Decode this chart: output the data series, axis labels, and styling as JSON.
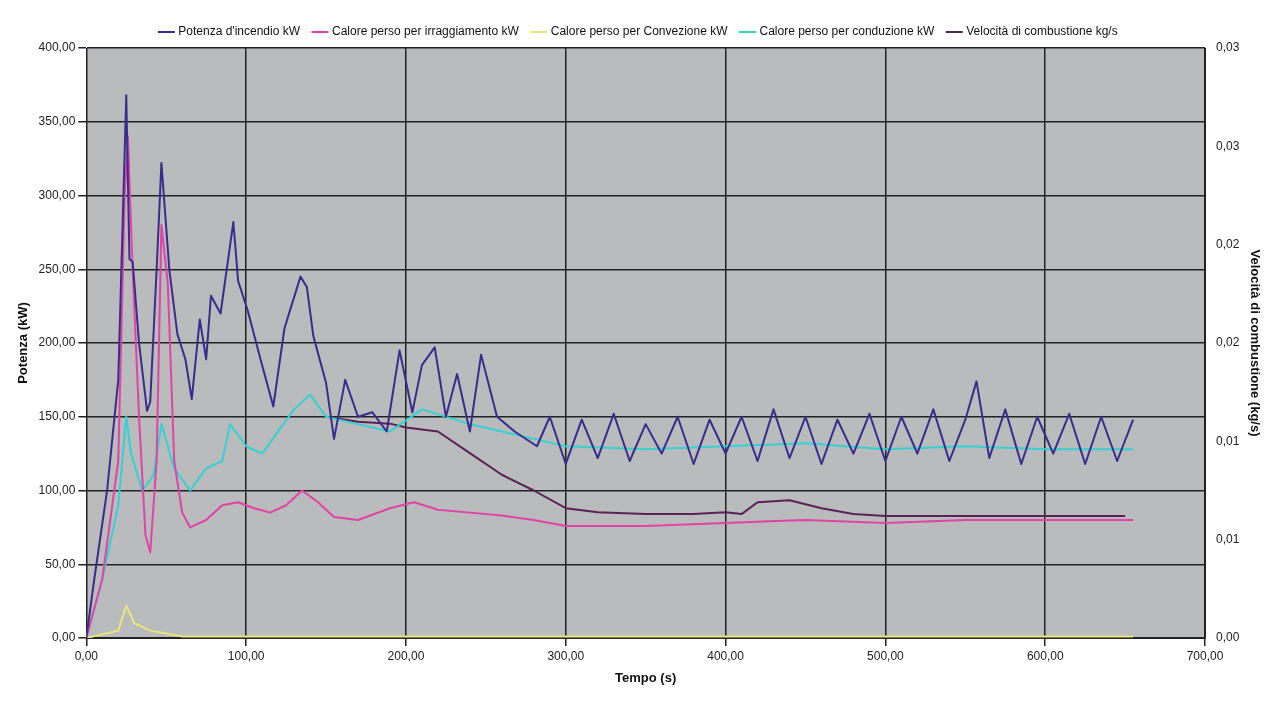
{
  "chart_data": {
    "type": "line",
    "xlabel": "Tempo (s)",
    "ylabel": "Potenza (kW)",
    "y2label": "Velocità di combustione (kg/s)",
    "xlim": [
      0,
      700
    ],
    "xticks": [
      {
        "value": 0,
        "label": "0,00"
      },
      {
        "value": 100,
        "label": "100,00"
      },
      {
        "value": 200,
        "label": "200,00"
      },
      {
        "value": 300,
        "label": "300,00"
      },
      {
        "value": 400,
        "label": "400,00"
      },
      {
        "value": 500,
        "label": "500,00"
      },
      {
        "value": 600,
        "label": "600,00"
      },
      {
        "value": 700,
        "label": "700,00"
      }
    ],
    "ylim": [
      0,
      400
    ],
    "yticks": [
      {
        "value": 0,
        "label": "0,00"
      },
      {
        "value": 50,
        "label": "50,00"
      },
      {
        "value": 100,
        "label": "100,00"
      },
      {
        "value": 150,
        "label": "150,00"
      },
      {
        "value": 200,
        "label": "200,00"
      },
      {
        "value": 250,
        "label": "250,00"
      },
      {
        "value": 300,
        "label": "300,00"
      },
      {
        "value": 350,
        "label": "350,00"
      },
      {
        "value": 400,
        "label": "400,00"
      }
    ],
    "y2lim": [
      0,
      0.03
    ],
    "y2ticks": [
      {
        "value": 0,
        "label": "0,00"
      },
      {
        "value": 0.005,
        "label": "0,01"
      },
      {
        "value": 0.01,
        "label": "0,01"
      },
      {
        "value": 0.015,
        "label": "0,02"
      },
      {
        "value": 0.02,
        "label": "0,02"
      },
      {
        "value": 0.025,
        "label": "0,03"
      },
      {
        "value": 0.03,
        "label": "0,03"
      }
    ],
    "grid": true,
    "legend": "top",
    "marker": "none",
    "line_style": "solid",
    "series": [
      {
        "name": "Potenza d'incendio kW",
        "color": "#3b2c8c",
        "x": [
          0,
          5,
          13,
          20,
          25,
          27,
          29,
          33,
          38,
          40,
          44,
          47,
          52,
          57,
          62,
          66,
          71,
          75,
          78,
          84,
          92,
          95,
          101,
          109,
          117,
          124,
          134,
          138,
          142,
          150,
          155,
          162,
          170,
          179,
          188,
          196,
          204,
          210,
          218,
          225,
          232,
          240,
          247,
          257,
          268,
          282,
          290,
          300,
          310,
          320,
          330,
          340,
          350,
          360,
          370,
          380,
          390,
          400,
          410,
          420,
          430,
          440,
          450,
          460,
          470,
          480,
          490,
          500,
          510,
          520,
          530,
          540,
          550,
          557,
          565,
          575,
          585,
          595,
          605,
          615,
          625,
          635,
          645,
          655
        ],
        "values": [
          0,
          40,
          100,
          175,
          368,
          257,
          255,
          200,
          154,
          160,
          250,
          322,
          249,
          206,
          189,
          162,
          216,
          189,
          232,
          220,
          282,
          242,
          222,
          189,
          157,
          210,
          245,
          238,
          205,
          173,
          135,
          175,
          150,
          153,
          140,
          195,
          153,
          185,
          197,
          150,
          179,
          140,
          192,
          150,
          140,
          130,
          150,
          118,
          148,
          122,
          152,
          120,
          145,
          125,
          150,
          118,
          148,
          125,
          150,
          120,
          155,
          122,
          150,
          118,
          148,
          125,
          152,
          120,
          150,
          125,
          155,
          120,
          148,
          174,
          122,
          155,
          118,
          150,
          125,
          152,
          118,
          150,
          120,
          148
        ]
      },
      {
        "name": "Calore perso per irraggiamento kW",
        "color": "#e044a4",
        "x": [
          0,
          10,
          20,
          24,
          26,
          29,
          33,
          37,
          40,
          44,
          47,
          51,
          55,
          60,
          65,
          75,
          85,
          95,
          105,
          115,
          125,
          135,
          145,
          155,
          170,
          190,
          205,
          220,
          240,
          260,
          280,
          300,
          350,
          400,
          450,
          500,
          550,
          600,
          655
        ],
        "values": [
          0,
          40,
          120,
          300,
          340,
          250,
          150,
          70,
          58,
          120,
          280,
          240,
          120,
          85,
          75,
          80,
          90,
          92,
          88,
          85,
          90,
          100,
          92,
          82,
          80,
          88,
          92,
          87,
          85,
          83,
          80,
          76,
          76,
          78,
          80,
          78,
          80,
          80,
          80
        ]
      },
      {
        "name": "Calore perso per Convezione kW",
        "color": "#e6e67a",
        "x": [
          0,
          20,
          25,
          30,
          40,
          50,
          60,
          100,
          200,
          300,
          400,
          500,
          600,
          655
        ],
        "values": [
          0,
          5,
          22,
          10,
          5,
          3,
          1,
          1,
          1,
          1,
          1,
          1,
          1,
          1
        ]
      },
      {
        "name": "Calore perso per conduzione kW",
        "color": "#35d2d2",
        "x": [
          0,
          10,
          20,
          25,
          28,
          35,
          42,
          47,
          55,
          65,
          75,
          85,
          90,
          100,
          110,
          120,
          130,
          140,
          150,
          170,
          190,
          210,
          240,
          280,
          300,
          350,
          400,
          450,
          500,
          550,
          600,
          655
        ],
        "values": [
          0,
          40,
          90,
          150,
          125,
          100,
          110,
          145,
          115,
          100,
          115,
          120,
          145,
          130,
          125,
          140,
          155,
          165,
          150,
          145,
          140,
          155,
          145,
          135,
          130,
          128,
          130,
          132,
          128,
          130,
          128,
          128
        ]
      },
      {
        "name": "Velocità di combustione kg/s",
        "color": "#5a2355",
        "axis": "y2",
        "x": [
          150,
          170,
          190,
          200,
          220,
          240,
          260,
          280,
          300,
          320,
          350,
          380,
          400,
          410,
          420,
          440,
          460,
          480,
          500,
          550,
          600,
          650
        ],
        "values": [
          0.01125,
          0.011,
          0.0109,
          0.0107,
          0.0105,
          0.0094,
          0.0083,
          0.0075,
          0.0066,
          0.0064,
          0.0063,
          0.0063,
          0.0064,
          0.0063,
          0.0069,
          0.007,
          0.0066,
          0.0063,
          0.0062,
          0.0062,
          0.0062,
          0.0062
        ]
      }
    ]
  }
}
